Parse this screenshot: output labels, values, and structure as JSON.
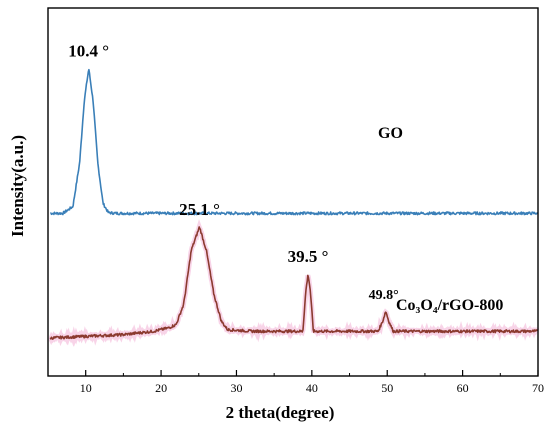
{
  "chart_data": {
    "type": "line",
    "title": "",
    "xlabel": "2 theta(degree)",
    "ylabel": "Intensity(a.u.)",
    "xlim": [
      5,
      70
    ],
    "xticks": [
      10,
      20,
      30,
      40,
      50,
      60,
      70
    ],
    "y_ticks_shown": false,
    "grid": false,
    "legend": "none",
    "series": [
      {
        "name": "GO",
        "color": "#3a7fb8",
        "x": [
          5.3,
          7,
          8.3,
          9.2,
          9.8,
          10.4,
          11,
          11.6,
          12.3,
          13,
          14,
          20,
          30,
          40,
          50,
          60,
          70
        ],
        "y": [
          0.37,
          0.37,
          0.39,
          0.52,
          0.7,
          0.8,
          0.7,
          0.52,
          0.4,
          0.372,
          0.37,
          0.37,
          0.37,
          0.37,
          0.37,
          0.37,
          0.37
        ],
        "annotations": [
          {
            "x": 10.4,
            "text": "10.4 °"
          }
        ]
      },
      {
        "name": "Co₃O₄/rGO-800",
        "color": "#8b3a2f",
        "x": [
          5.3,
          15,
          19,
          21,
          22,
          23,
          24,
          25.1,
          26,
          27,
          28,
          28.8,
          32,
          38.8,
          39.2,
          39.5,
          39.8,
          40.2,
          48.8,
          49.4,
          49.8,
          50.2,
          50.8,
          60,
          70
        ],
        "y": [
          0.0,
          0.01,
          0.02,
          0.03,
          0.04,
          0.1,
          0.26,
          0.33,
          0.26,
          0.13,
          0.05,
          0.025,
          0.02,
          0.02,
          0.14,
          0.19,
          0.14,
          0.02,
          0.02,
          0.05,
          0.08,
          0.05,
          0.02,
          0.02,
          0.02
        ],
        "annotations": [
          {
            "x": 25.1,
            "text": "25.1 °"
          },
          {
            "x": 39.5,
            "text": "39.5 °"
          },
          {
            "x": 49.8,
            "text": "49.8°"
          }
        ]
      }
    ]
  }
}
